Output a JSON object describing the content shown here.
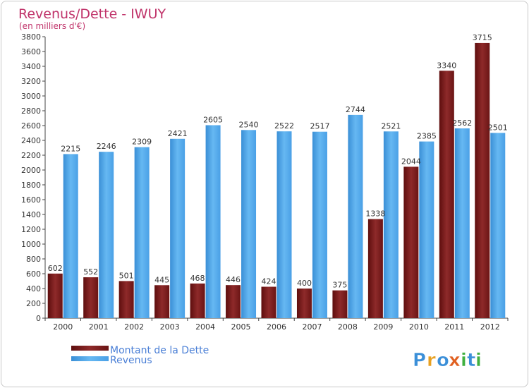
{
  "chart_data": {
    "type": "bar",
    "title": "Revenus/Dette - IWUY",
    "subtitle": "(en milliers d'€)",
    "categories": [
      "2000",
      "2001",
      "2002",
      "2003",
      "2004",
      "2005",
      "2006",
      "2007",
      "2008",
      "2009",
      "2010",
      "2011",
      "2012"
    ],
    "series": [
      {
        "name": "Montant de la Dette",
        "color": "#7a1a1a",
        "values": [
          602,
          552,
          501,
          445,
          468,
          446,
          424,
          400,
          375,
          1338,
          2044,
          3340,
          3715
        ]
      },
      {
        "name": "Revenus",
        "color": "#4aa3e8",
        "values": [
          2215,
          2246,
          2309,
          2421,
          2605,
          2540,
          2522,
          2517,
          2744,
          2521,
          2385,
          2562,
          2501
        ]
      }
    ],
    "ylim": [
      0,
      3800
    ],
    "yticks": [
      0,
      200,
      400,
      600,
      800,
      1000,
      1200,
      1400,
      1600,
      1800,
      2000,
      2200,
      2400,
      2600,
      2800,
      3000,
      3200,
      3400,
      3600,
      3800
    ],
    "legend_position": "bottom-left",
    "grid": false
  },
  "logo": {
    "text": "Proxiti",
    "letters": [
      "P",
      "r",
      "o",
      "x",
      "i",
      "t",
      "i"
    ],
    "colors": [
      "#3b8fd8",
      "#e8a020",
      "#3b8fd8",
      "#e06020",
      "#40b040",
      "#3b8fd8",
      "#40b040"
    ]
  }
}
